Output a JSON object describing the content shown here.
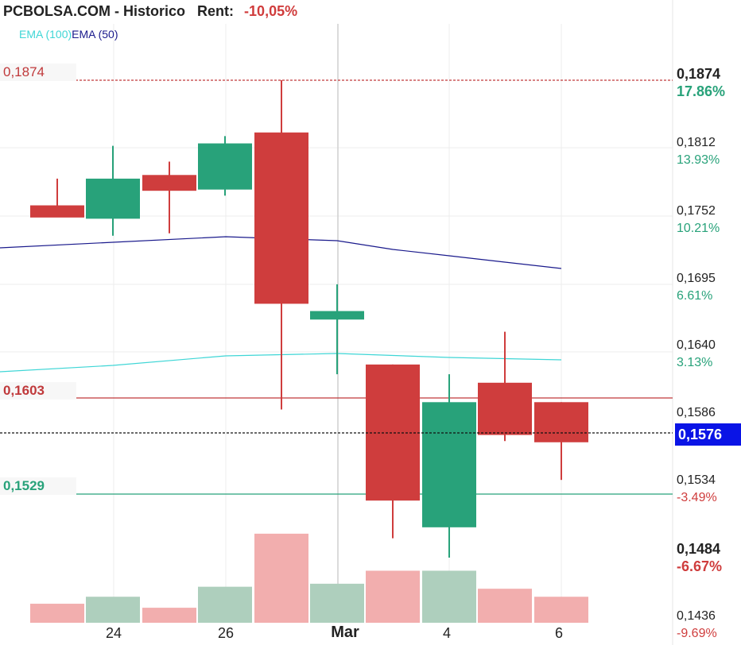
{
  "header": {
    "title": "PCBOLSA.COM - Historico",
    "rent_label": "Rent:",
    "rent_value": "-10,05%"
  },
  "legend": {
    "ema100": "EMA (100)",
    "ema50": "EMA (50)"
  },
  "price_labels": {
    "max": "0,1874",
    "ref": "0,1603",
    "min": "0,1529",
    "current": "0,1576"
  },
  "y_axis": [
    {
      "price": "0,1874",
      "pct": "17.86%",
      "bold": true,
      "sign": "pos"
    },
    {
      "price": "0,1812",
      "pct": "13.93%",
      "bold": false,
      "sign": "pos"
    },
    {
      "price": "0,1752",
      "pct": "10.21%",
      "bold": false,
      "sign": "pos"
    },
    {
      "price": "0,1695",
      "pct": "6.61%",
      "bold": false,
      "sign": "pos"
    },
    {
      "price": "0,1640",
      "pct": "3.13%",
      "bold": false,
      "sign": "pos"
    },
    {
      "price": "0,1586",
      "pct": "",
      "bold": false,
      "sign": "pos"
    },
    {
      "price": "0,1534",
      "pct": "-3.49%",
      "bold": false,
      "sign": "neg"
    },
    {
      "price": "0,1484",
      "pct": "-6.67%",
      "bold": true,
      "sign": "neg"
    },
    {
      "price": "0,1436",
      "pct": "-9.69%",
      "bold": false,
      "sign": "neg"
    }
  ],
  "x_ticks": [
    {
      "label": "24",
      "major": false
    },
    {
      "label": "26",
      "major": false
    },
    {
      "label": "Mar",
      "major": true
    },
    {
      "label": "4",
      "major": false
    },
    {
      "label": "6",
      "major": false
    }
  ],
  "colors": {
    "up": "#28a27a",
    "down": "#cf3d3d",
    "up_volume": "#aecfbd",
    "down_volume": "#f2aeae",
    "ema100": "#3fd6d6",
    "ema50": "#1a1a8c",
    "max_line": "#c0393b",
    "min_line": "#28a27a",
    "current_bg": "#0a14e6"
  },
  "chart_data": {
    "type": "candlestick",
    "title": "PCBOLSA.COM - Historico",
    "ylim": [
      0.1436,
      0.1905
    ],
    "candles": [
      {
        "open": 0.1771,
        "high": 0.1793,
        "low": 0.1765,
        "close": 0.1761
      },
      {
        "open": 0.176,
        "high": 0.182,
        "low": 0.1746,
        "close": 0.1793
      },
      {
        "open": 0.1796,
        "high": 0.1807,
        "low": 0.1748,
        "close": 0.1783
      },
      {
        "open": 0.1784,
        "high": 0.1828,
        "low": 0.1779,
        "close": 0.1822
      },
      {
        "open": 0.1831,
        "high": 0.1874,
        "low": 0.1603,
        "close": 0.169
      },
      {
        "open": 0.1677,
        "high": 0.1706,
        "low": 0.1632,
        "close": 0.1684
      },
      {
        "open": 0.164,
        "high": 0.164,
        "low": 0.1497,
        "close": 0.1528
      },
      {
        "open": 0.1506,
        "high": 0.1632,
        "low": 0.1481,
        "close": 0.1609
      },
      {
        "open": 0.1625,
        "high": 0.1667,
        "low": 0.1577,
        "close": 0.1582
      },
      {
        "open": 0.1609,
        "high": 0.1609,
        "low": 0.1545,
        "close": 0.1576
      }
    ],
    "volume_relative": [
      0.19,
      0.26,
      0.15,
      0.36,
      0.89,
      0.39,
      0.52,
      0.52,
      0.34,
      0.26
    ],
    "ema100": [
      0.1627,
      0.163,
      0.1632,
      0.1635,
      0.1637,
      0.1638,
      0.1638,
      0.1637,
      0.1636,
      0.1635
    ],
    "ema50": [
      0.1734,
      0.1736,
      0.1737,
      0.1739,
      0.1741,
      0.174,
      0.1735,
      0.1731,
      0.1727,
      0.1723
    ],
    "max_price": 0.1874,
    "ref_price": 0.1603,
    "min_price": 0.1529,
    "current_price": 0.1576,
    "grid": true
  }
}
